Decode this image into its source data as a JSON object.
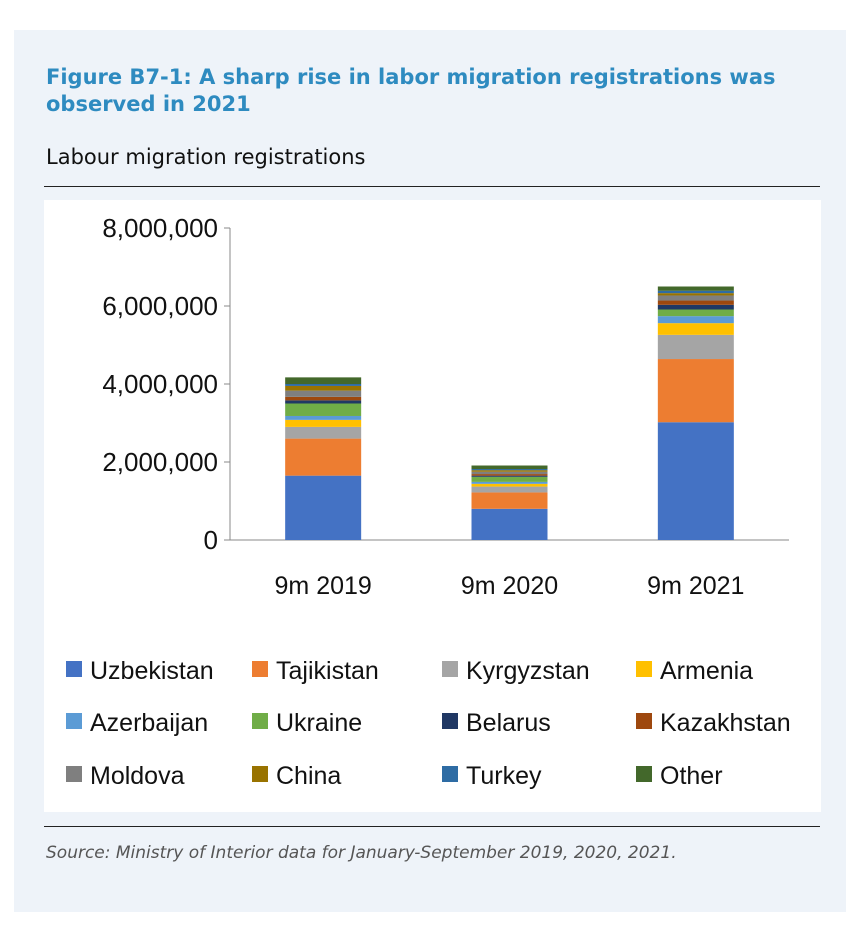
{
  "figure_title": "Figure B7-1: A sharp rise in labor migration registrations was observed in 2021",
  "subtitle": "Labour migration registrations",
  "source_note": "Source: Ministry of Interior data for January-September 2019, 2020, 2021.",
  "chart_data": {
    "type": "bar",
    "stacked": true,
    "title": "",
    "xlabel": "",
    "ylabel": "",
    "categories": [
      "9m 2019",
      "9m 2020",
      "9m 2021"
    ],
    "ylim": [
      0,
      8000000
    ],
    "yticks": [
      0,
      2000000,
      4000000,
      6000000,
      8000000
    ],
    "ytick_labels": [
      "0",
      "2,000,000",
      "4,000,000",
      "6,000,000",
      "8,000,000"
    ],
    "grid": false,
    "legend_position": "bottom",
    "series": [
      {
        "name": "Uzbekistan",
        "color": "#4472c4",
        "values": [
          1650000,
          800000,
          3020000
        ]
      },
      {
        "name": "Tajikistan",
        "color": "#ed7d31",
        "values": [
          950000,
          420000,
          1620000
        ]
      },
      {
        "name": "Kyrgyzstan",
        "color": "#a5a5a5",
        "values": [
          300000,
          150000,
          620000
        ]
      },
      {
        "name": "Armenia",
        "color": "#ffc000",
        "values": [
          180000,
          70000,
          300000
        ]
      },
      {
        "name": "Azerbaijan",
        "color": "#5b9bd5",
        "values": [
          100000,
          50000,
          180000
        ]
      },
      {
        "name": "Ukraine",
        "color": "#70ad47",
        "values": [
          320000,
          130000,
          170000
        ]
      },
      {
        "name": "Belarus",
        "color": "#203864",
        "values": [
          80000,
          30000,
          120000
        ]
      },
      {
        "name": "Kazakhstan",
        "color": "#9e480e",
        "values": [
          90000,
          40000,
          110000
        ]
      },
      {
        "name": "Moldova",
        "color": "#7f7f7f",
        "values": [
          160000,
          60000,
          130000
        ]
      },
      {
        "name": "China",
        "color": "#997300",
        "values": [
          120000,
          40000,
          60000
        ]
      },
      {
        "name": "Turkey",
        "color": "#2e6ca4",
        "values": [
          50000,
          30000,
          60000
        ]
      },
      {
        "name": "Other",
        "color": "#43682b",
        "values": [
          170000,
          90000,
          110000
        ]
      }
    ]
  }
}
